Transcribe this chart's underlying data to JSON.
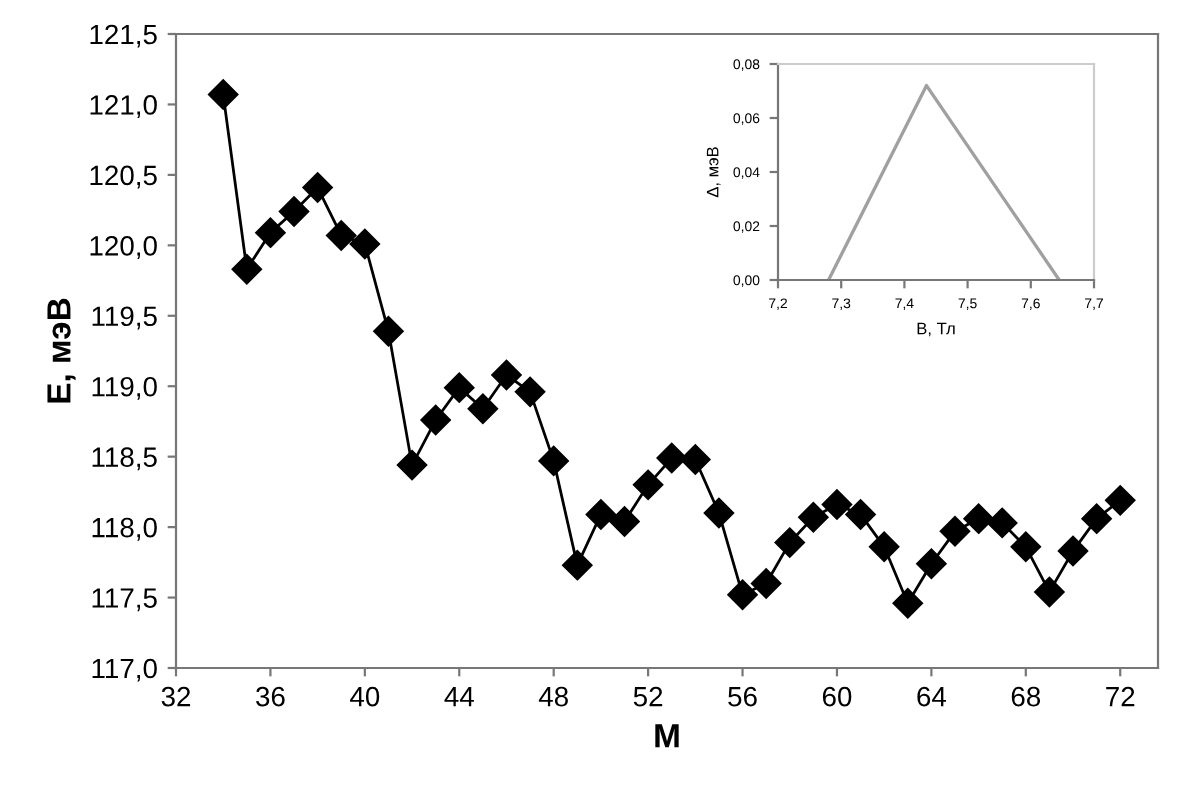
{
  "chart_data": [
    {
      "type": "line",
      "xlabel": "M",
      "ylabel": "E, мэВ",
      "marker": "diamond",
      "line_style": "solid",
      "grid": false,
      "legend": false,
      "x": [
        34,
        35,
        36,
        37,
        38,
        39,
        40,
        41,
        42,
        43,
        44,
        45,
        46,
        47,
        48,
        49,
        50,
        51,
        52,
        53,
        54,
        55,
        56,
        57,
        58,
        59,
        60,
        61,
        62,
        63,
        64,
        65,
        66,
        67,
        68,
        69,
        70,
        71,
        72
      ],
      "series": [
        {
          "color": "#000000",
          "values": [
            121.07,
            119.83,
            120.09,
            120.24,
            120.41,
            120.07,
            120.01,
            119.39,
            118.44,
            118.76,
            118.99,
            118.84,
            119.08,
            118.96,
            118.47,
            117.73,
            118.09,
            118.04,
            118.3,
            118.49,
            118.48,
            118.1,
            117.52,
            117.6,
            117.89,
            118.07,
            118.16,
            118.09,
            117.86,
            117.46,
            117.74,
            117.97,
            118.06,
            118.03,
            117.86,
            117.54,
            117.83,
            118.06,
            118.19
          ]
        }
      ],
      "xlim": [
        32,
        73.6
      ],
      "xticks": [
        32,
        36,
        40,
        44,
        48,
        52,
        56,
        60,
        64,
        68,
        72
      ],
      "ylim": [
        117,
        121.5
      ],
      "yticks": [
        {
          "value": 117,
          "label": "117,0"
        },
        {
          "value": 117.5,
          "label": "117,5"
        },
        {
          "value": 118,
          "label": "118,0"
        },
        {
          "value": 118.5,
          "label": "118,5"
        },
        {
          "value": 119,
          "label": "119,0"
        },
        {
          "value": 119.5,
          "label": "119,5"
        },
        {
          "value": 120,
          "label": "120,0"
        },
        {
          "value": 120.5,
          "label": "120,5"
        },
        {
          "value": 121,
          "label": "121,0"
        },
        {
          "value": 121.5,
          "label": "121,5"
        }
      ]
    },
    {
      "type": "line",
      "xlabel": "B, Тл",
      "ylabel": "Δ, мэВ",
      "marker": "none",
      "line_style": "solid",
      "grid": false,
      "legend": false,
      "x": [
        7.28,
        7.435,
        7.645
      ],
      "series": [
        {
          "color": "#a0a0a0",
          "values": [
            0,
            0.072,
            0
          ]
        }
      ],
      "xlim": [
        7.2,
        7.7
      ],
      "xticks": [
        {
          "value": 7.2,
          "label": "7,2"
        },
        {
          "value": 7.3,
          "label": "7,3"
        },
        {
          "value": 7.4,
          "label": "7,4"
        },
        {
          "value": 7.5,
          "label": "7,5"
        },
        {
          "value": 7.6,
          "label": "7,6"
        },
        {
          "value": 7.7,
          "label": "7,7"
        }
      ],
      "ylim": [
        0,
        0.08
      ],
      "yticks": [
        {
          "value": 0,
          "label": "0,00"
        },
        {
          "value": 0.02,
          "label": "0,02"
        },
        {
          "value": 0.04,
          "label": "0,04"
        },
        {
          "value": 0.06,
          "label": "0,06"
        },
        {
          "value": 0.08,
          "label": "0,08"
        }
      ]
    }
  ]
}
